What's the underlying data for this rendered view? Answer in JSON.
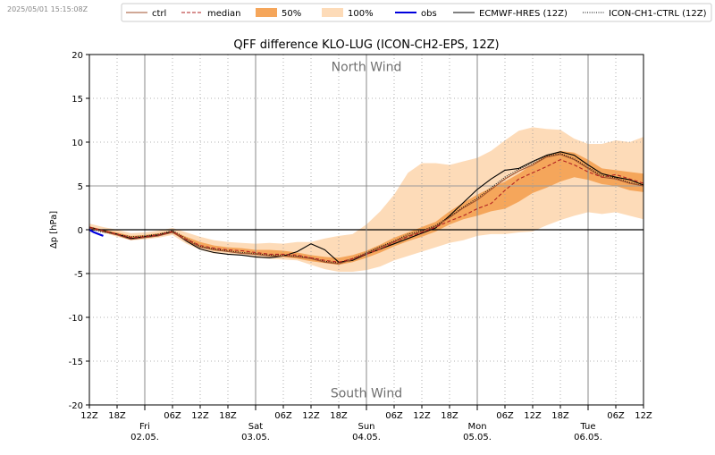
{
  "timestamp": "2025/05/01 15:15:08Z",
  "chart_data": {
    "type": "line",
    "title": "QFF difference KLO-LUG (ICON-CH2-EPS, 12Z)",
    "ylabel": "Δp [hPa]",
    "xlabel": "",
    "ylim": [
      -20,
      20
    ],
    "xlim": [
      0,
      120
    ],
    "x_unit": "hours since 12Z Thu 01.05.",
    "yticks": [
      -20,
      -15,
      -10,
      -5,
      0,
      5,
      10,
      15,
      20
    ],
    "xticks": [
      {
        "x": 0,
        "label": "12Z"
      },
      {
        "x": 6,
        "label": "18Z"
      },
      {
        "x": 18,
        "label": "06Z"
      },
      {
        "x": 24,
        "label": "12Z"
      },
      {
        "x": 30,
        "label": "18Z"
      },
      {
        "x": 42,
        "label": "06Z"
      },
      {
        "x": 48,
        "label": "12Z"
      },
      {
        "x": 54,
        "label": "18Z"
      },
      {
        "x": 66,
        "label": "06Z"
      },
      {
        "x": 72,
        "label": "12Z"
      },
      {
        "x": 78,
        "label": "18Z"
      },
      {
        "x": 90,
        "label": "06Z"
      },
      {
        "x": 96,
        "label": "12Z"
      },
      {
        "x": 102,
        "label": "18Z"
      },
      {
        "x": 114,
        "label": "06Z"
      },
      {
        "x": 120,
        "label": "12Z"
      }
    ],
    "day_markers": [
      {
        "x": 12,
        "day": "Fri",
        "date": "02.05."
      },
      {
        "x": 36,
        "day": "Sat",
        "date": "03.05."
      },
      {
        "x": 60,
        "day": "Sun",
        "date": "04.05."
      },
      {
        "x": 84,
        "day": "Mon",
        "date": "05.05."
      },
      {
        "x": 108,
        "day": "Tue",
        "date": "06.05."
      }
    ],
    "annotations": [
      {
        "text": "North Wind",
        "x": 60,
        "y": 18.6
      },
      {
        "text": "South Wind",
        "x": 60,
        "y": -18.6
      }
    ],
    "legend": {
      "placement": "top",
      "entries": [
        {
          "label": "ctrl",
          "style": "line",
          "color": "#a0522d"
        },
        {
          "label": "median",
          "style": "dashed",
          "color": "#b22222"
        },
        {
          "label": "50%",
          "style": "fill",
          "color": "#f5a65b"
        },
        {
          "label": "100%",
          "style": "fill",
          "color": "#fddbb8"
        },
        {
          "label": "obs",
          "style": "line",
          "color": "#0000dd"
        },
        {
          "label": "ECMWF-HRES (12Z)",
          "style": "line",
          "color": "#000000"
        },
        {
          "label": "ICON-CH1-CTRL (12Z)",
          "style": "dotted",
          "color": "#000000"
        }
      ]
    },
    "colors": {
      "band_100": "#fddbb8",
      "band_50": "#f5a65b",
      "median": "#b22222",
      "ctrl": "#a0522d",
      "obs": "#0000dd",
      "hres": "#000000",
      "ich1": "#000000",
      "zero_line": "#000000",
      "grid": "#9a9a9a"
    },
    "series": [
      {
        "name": "100% min",
        "x": [
          0,
          3,
          6,
          9,
          12,
          15,
          18,
          21,
          24,
          27,
          30,
          33,
          36,
          39,
          42,
          45,
          48,
          51,
          54,
          57,
          60,
          63,
          66,
          69,
          72,
          75,
          78,
          81,
          84,
          87,
          90,
          93,
          96,
          99,
          102,
          105,
          108,
          111,
          114,
          117,
          120
        ],
        "values": [
          0.1,
          -0.3,
          -0.8,
          -1.2,
          -1.1,
          -0.9,
          -0.6,
          -1.6,
          -2.3,
          -2.7,
          -2.8,
          -2.9,
          -3.2,
          -3.3,
          -3.4,
          -3.5,
          -4.0,
          -4.5,
          -4.8,
          -4.8,
          -4.6,
          -4.2,
          -3.5,
          -3.0,
          -2.5,
          -2.0,
          -1.5,
          -1.2,
          -0.7,
          -0.5,
          -0.5,
          -0.3,
          -0.2,
          0.5,
          1.1,
          1.6,
          2.0,
          1.8,
          2.0,
          1.6,
          1.2
        ]
      },
      {
        "name": "25%",
        "x": [
          0,
          3,
          6,
          9,
          12,
          15,
          18,
          21,
          24,
          27,
          30,
          33,
          36,
          39,
          42,
          45,
          48,
          51,
          54,
          57,
          60,
          63,
          66,
          69,
          72,
          75,
          78,
          81,
          84,
          87,
          90,
          93,
          96,
          99,
          102,
          105,
          108,
          111,
          114,
          117,
          120
        ],
        "values": [
          0.2,
          -0.2,
          -0.6,
          -1.0,
          -0.9,
          -0.7,
          -0.4,
          -1.3,
          -2.0,
          -2.4,
          -2.5,
          -2.6,
          -2.9,
          -3.0,
          -3.1,
          -3.3,
          -3.6,
          -3.8,
          -4.0,
          -3.7,
          -3.2,
          -2.6,
          -1.9,
          -1.3,
          -0.8,
          -0.2,
          0.6,
          1.2,
          1.6,
          2.1,
          2.4,
          3.2,
          4.2,
          4.8,
          5.5,
          6.0,
          5.7,
          5.2,
          5.0,
          4.5,
          4.3
        ]
      },
      {
        "name": "75%",
        "x": [
          0,
          3,
          6,
          9,
          12,
          15,
          18,
          21,
          24,
          27,
          30,
          33,
          36,
          39,
          42,
          45,
          48,
          51,
          54,
          57,
          60,
          63,
          66,
          69,
          72,
          75,
          78,
          81,
          84,
          87,
          90,
          93,
          96,
          99,
          102,
          105,
          108,
          111,
          114,
          117,
          120
        ],
        "values": [
          0.4,
          0.0,
          -0.3,
          -0.7,
          -0.6,
          -0.4,
          -0.1,
          -0.8,
          -1.4,
          -1.8,
          -2.0,
          -2.1,
          -2.3,
          -2.3,
          -2.4,
          -2.6,
          -2.9,
          -3.1,
          -3.2,
          -2.9,
          -2.4,
          -1.7,
          -0.9,
          -0.3,
          0.3,
          0.9,
          2.1,
          3.1,
          4.0,
          4.8,
          5.5,
          6.4,
          7.5,
          8.5,
          9.0,
          8.8,
          8.0,
          7.0,
          6.8,
          6.6,
          6.4
        ]
      },
      {
        "name": "100% max",
        "x": [
          0,
          3,
          6,
          9,
          12,
          15,
          18,
          21,
          24,
          27,
          30,
          33,
          36,
          39,
          42,
          45,
          48,
          51,
          54,
          57,
          60,
          63,
          66,
          69,
          72,
          75,
          78,
          81,
          84,
          87,
          90,
          93,
          96,
          99,
          102,
          105,
          108,
          111,
          114,
          117,
          120
        ],
        "values": [
          0.7,
          0.3,
          0.0,
          -0.4,
          -0.3,
          -0.1,
          0.2,
          -0.3,
          -0.8,
          -1.2,
          -1.4,
          -1.5,
          -1.6,
          -1.5,
          -1.6,
          -1.4,
          -1.4,
          -1.0,
          -0.7,
          -0.5,
          0.6,
          2.1,
          4.0,
          6.5,
          7.6,
          7.6,
          7.4,
          7.8,
          8.2,
          9.0,
          10.2,
          11.3,
          11.7,
          11.5,
          11.4,
          10.4,
          9.8,
          9.8,
          10.2,
          10.0,
          10.6
        ]
      },
      {
        "name": "median",
        "x": [
          0,
          3,
          6,
          9,
          12,
          15,
          18,
          21,
          24,
          27,
          30,
          33,
          36,
          39,
          42,
          45,
          48,
          51,
          54,
          57,
          60,
          63,
          66,
          69,
          72,
          75,
          78,
          81,
          84,
          87,
          90,
          93,
          96,
          99,
          102,
          105,
          108,
          111,
          114,
          117,
          120
        ],
        "values": [
          0.3,
          -0.1,
          -0.5,
          -0.9,
          -0.8,
          -0.6,
          -0.2,
          -1.1,
          -1.8,
          -2.1,
          -2.3,
          -2.4,
          -2.6,
          -2.8,
          -2.8,
          -2.9,
          -3.2,
          -3.5,
          -3.7,
          -3.3,
          -2.8,
          -2.2,
          -1.4,
          -0.8,
          -0.3,
          0.3,
          1.0,
          1.6,
          2.4,
          3.0,
          4.5,
          5.8,
          6.5,
          7.2,
          8.0,
          7.4,
          6.6,
          6.0,
          6.3,
          5.8,
          5.3
        ]
      },
      {
        "name": "ctrl",
        "x": [
          0,
          3,
          6,
          9,
          12,
          15,
          18,
          21,
          24,
          27,
          30,
          33,
          36,
          39,
          42,
          45,
          48,
          51,
          54,
          57,
          60,
          63,
          66,
          69,
          72,
          75,
          78,
          81,
          84,
          87,
          90,
          93,
          96,
          99,
          102,
          105,
          108,
          111,
          114,
          117,
          120
        ],
        "values": [
          0.2,
          -0.2,
          -0.6,
          -1.1,
          -0.9,
          -0.7,
          -0.3,
          -1.2,
          -2.0,
          -2.3,
          -2.5,
          -2.7,
          -2.8,
          -3.0,
          -3.0,
          -3.1,
          -3.3,
          -3.7,
          -3.9,
          -3.4,
          -2.7,
          -2.0,
          -1.4,
          -0.7,
          -0.2,
          0.4,
          1.4,
          2.5,
          3.4,
          4.6,
          5.8,
          6.7,
          7.4,
          8.3,
          8.6,
          8.0,
          7.0,
          6.0,
          5.8,
          5.3,
          5.0
        ]
      },
      {
        "name": "ECMWF-HRES (12Z)",
        "x": [
          0,
          3,
          6,
          9,
          12,
          15,
          18,
          21,
          24,
          27,
          30,
          33,
          36,
          39,
          42,
          45,
          48,
          51,
          54,
          57,
          60,
          63,
          66,
          69,
          72,
          75,
          78,
          81,
          84,
          87,
          90,
          93,
          96,
          99,
          102,
          105,
          108,
          111,
          114,
          117,
          120
        ],
        "values": [
          0.3,
          -0.1,
          -0.5,
          -1.0,
          -0.8,
          -0.6,
          -0.2,
          -1.3,
          -2.2,
          -2.6,
          -2.8,
          -2.9,
          -3.1,
          -3.2,
          -3.0,
          -2.5,
          -1.6,
          -2.3,
          -3.7,
          -3.5,
          -2.8,
          -2.2,
          -1.6,
          -1.0,
          -0.4,
          0.2,
          1.6,
          3.1,
          4.6,
          5.8,
          6.8,
          7.0,
          7.8,
          8.5,
          8.9,
          8.5,
          7.4,
          6.4,
          6.0,
          5.7,
          5.1
        ]
      },
      {
        "name": "ICON-CH1-CTRL (12Z)",
        "x": [
          0,
          3,
          6,
          9,
          12,
          15,
          18,
          21,
          24,
          27,
          30,
          33,
          36,
          39,
          42,
          45,
          48,
          51,
          54,
          57,
          60,
          63,
          66,
          69,
          72,
          75,
          78,
          81,
          84,
          87,
          90,
          93,
          96,
          99,
          102,
          105,
          108,
          111,
          114,
          117,
          120
        ],
        "values": [
          0.1,
          -0.3,
          -0.5,
          -0.8,
          -0.7,
          -0.5,
          -0.1,
          -1.0,
          -1.9,
          -2.2,
          -2.4,
          -2.6,
          -2.7,
          -2.9,
          -2.9,
          -3.0,
          -3.2,
          -3.6,
          -3.8,
          -3.3,
          -2.6,
          -1.9,
          -1.3,
          -0.5,
          -0.1,
          0.5,
          1.5,
          2.6,
          3.6,
          4.8,
          6.0,
          6.9,
          7.6,
          8.4,
          8.7,
          8.1,
          7.1,
          6.2,
          5.9,
          5.4,
          5.0
        ]
      },
      {
        "name": "obs",
        "x": [
          0,
          1,
          2,
          3
        ],
        "values": [
          0.0,
          -0.3,
          -0.5,
          -0.7
        ]
      }
    ]
  }
}
